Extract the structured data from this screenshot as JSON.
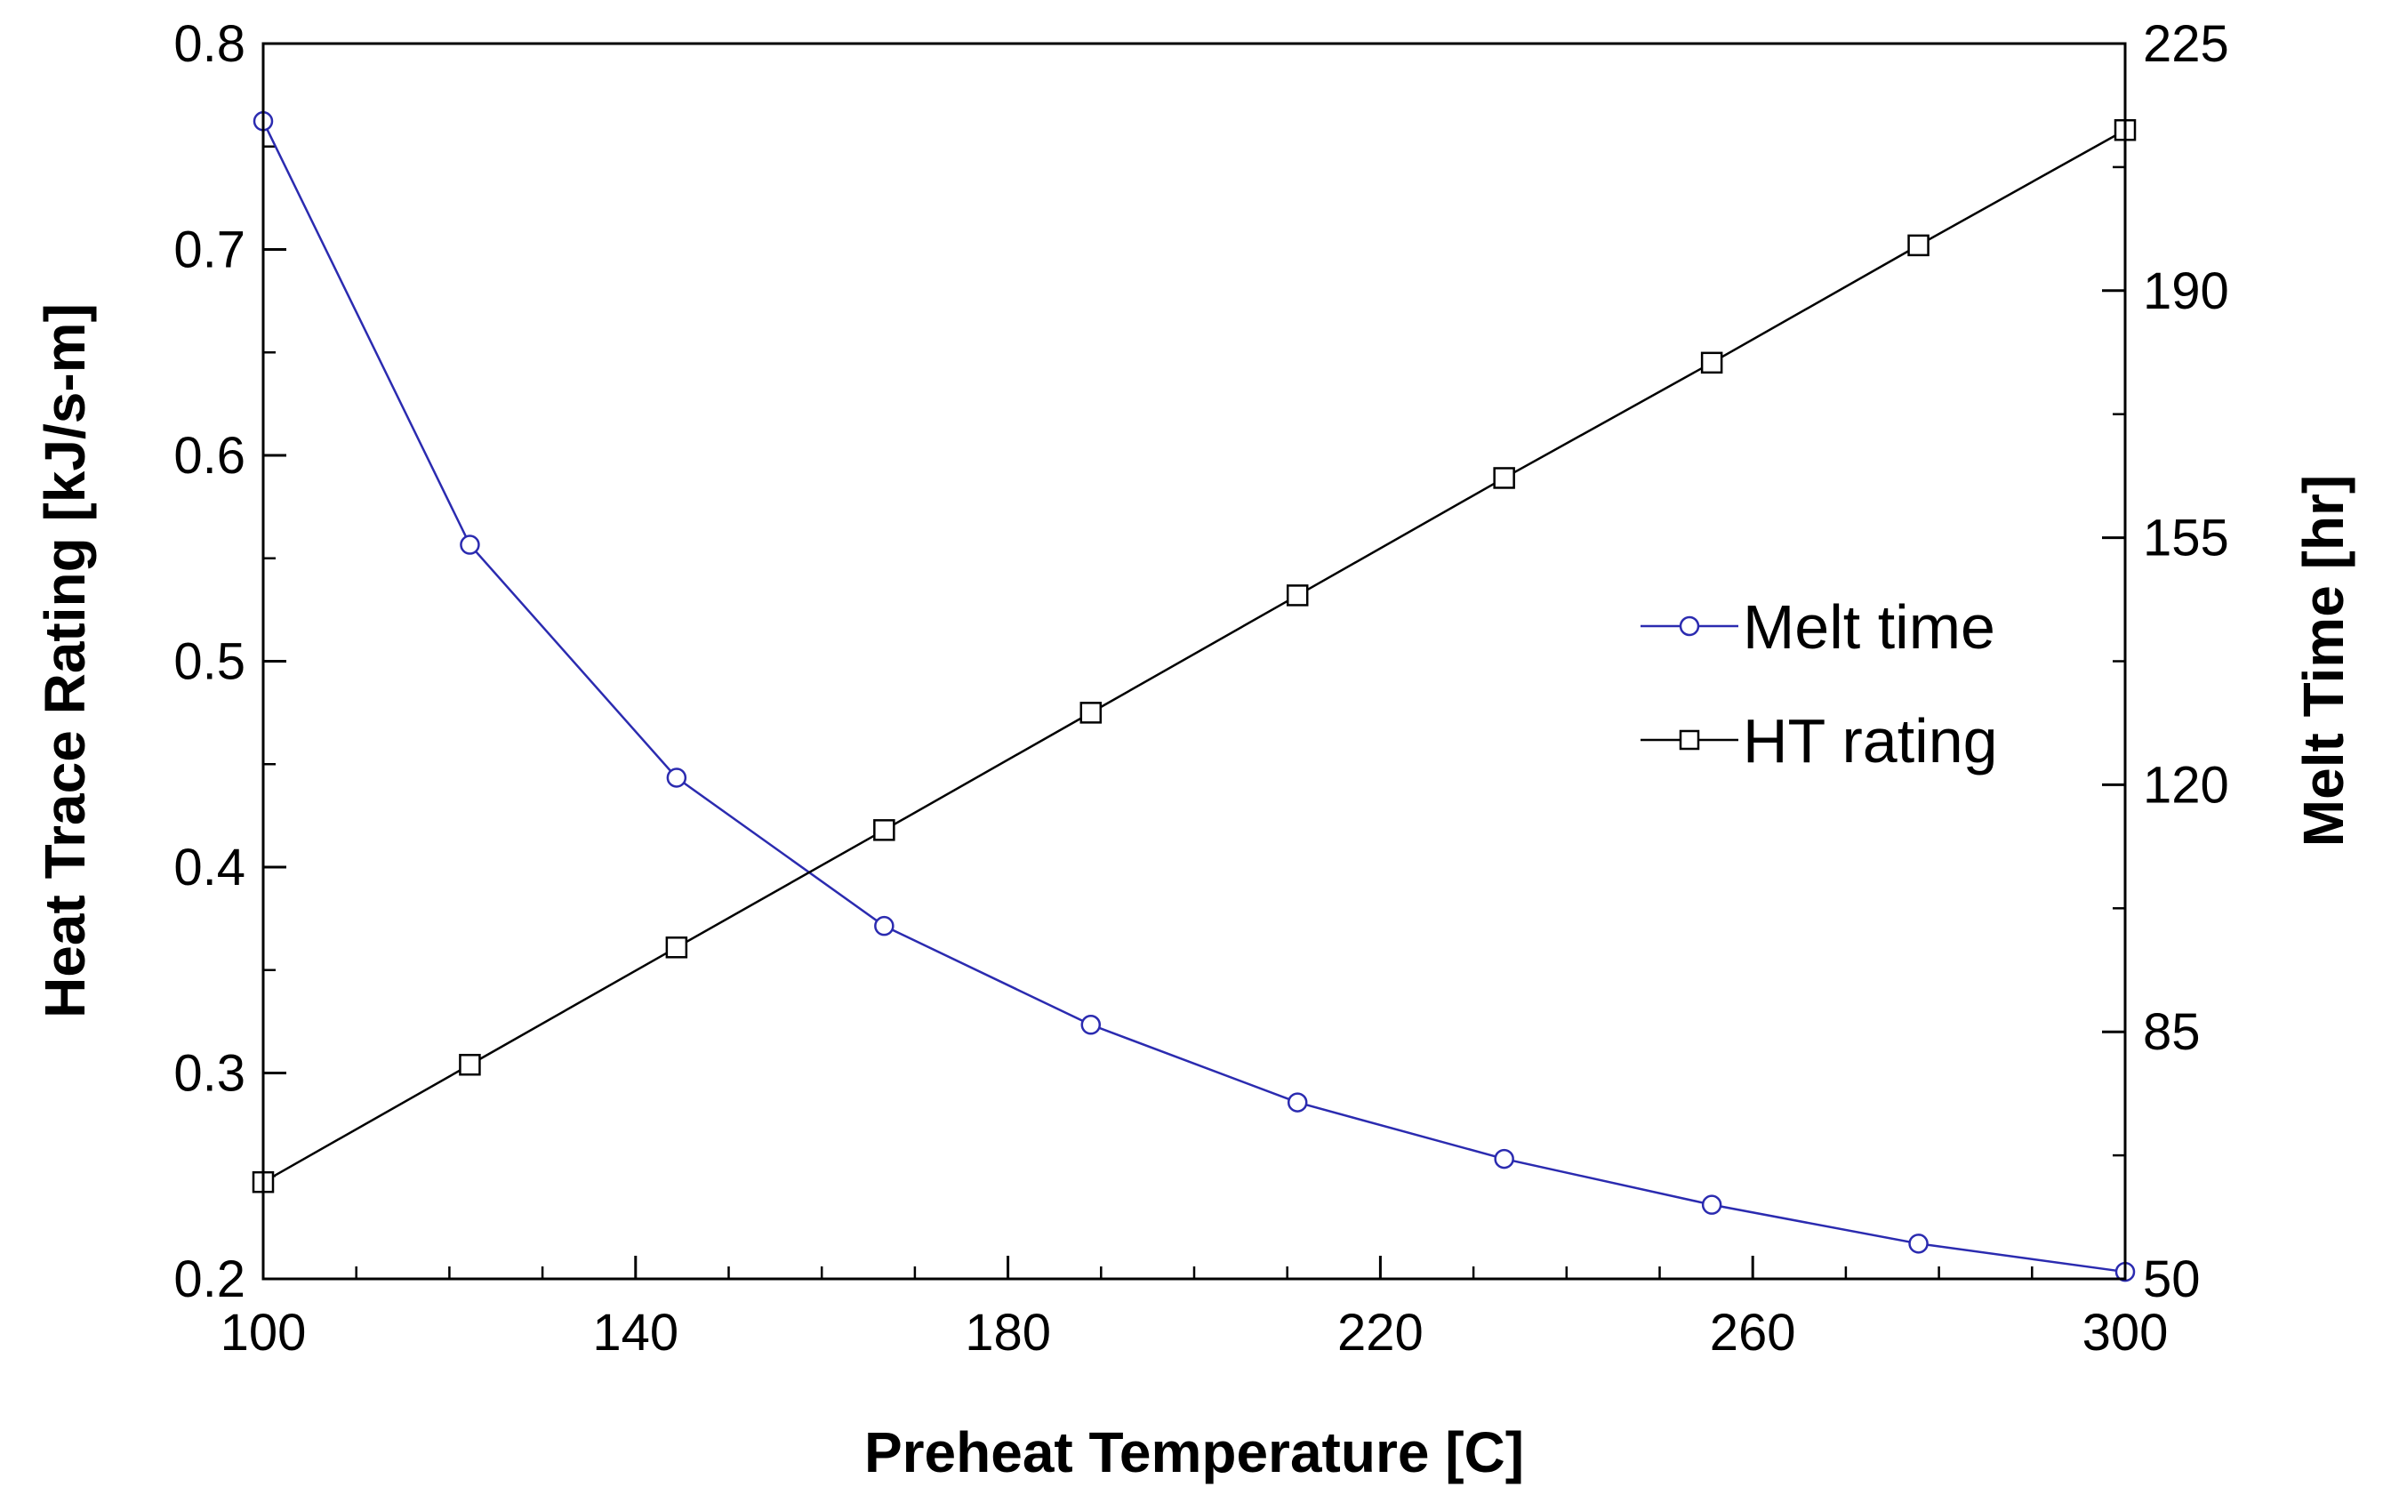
{
  "chart_data": {
    "type": "line",
    "xlabel": "Preheat Temperature  [C]",
    "ylabel_left": "Heat Trace Rating  [kJ/s-m]",
    "ylabel_right": "Melt Time [hr]",
    "xlim": [
      100,
      300
    ],
    "ylim_left": [
      0.2,
      0.8
    ],
    "ylim_right": [
      50,
      225
    ],
    "x_ticks": [
      "100",
      "140",
      "180",
      "220",
      "260",
      "300"
    ],
    "y_left_ticks": [
      "0.2",
      "0.3",
      "0.4",
      "0.5",
      "0.6",
      "0.7",
      "0.8"
    ],
    "y_right_ticks": [
      "50",
      "85",
      "120",
      "155",
      "190",
      "225"
    ],
    "grid": false,
    "legend_position": "right-center",
    "series": [
      {
        "name": "Melt time",
        "axis": "right",
        "marker": "circle",
        "color": "#2b2bb0",
        "x": [
          100,
          122.2,
          144.4,
          166.7,
          188.9,
          211.1,
          233.3,
          255.6,
          277.8,
          300
        ],
        "values": [
          214,
          154,
          121,
          100,
          86,
          75,
          67,
          60.5,
          55,
          51
        ]
      },
      {
        "name": "HT rating",
        "axis": "left",
        "marker": "square",
        "color": "#000000",
        "x": [
          100,
          122.2,
          144.4,
          166.7,
          188.9,
          211.1,
          233.3,
          255.6,
          277.8,
          300
        ],
        "values": [
          0.247,
          0.304,
          0.361,
          0.418,
          0.475,
          0.532,
          0.589,
          0.645,
          0.702,
          0.758
        ]
      }
    ]
  }
}
